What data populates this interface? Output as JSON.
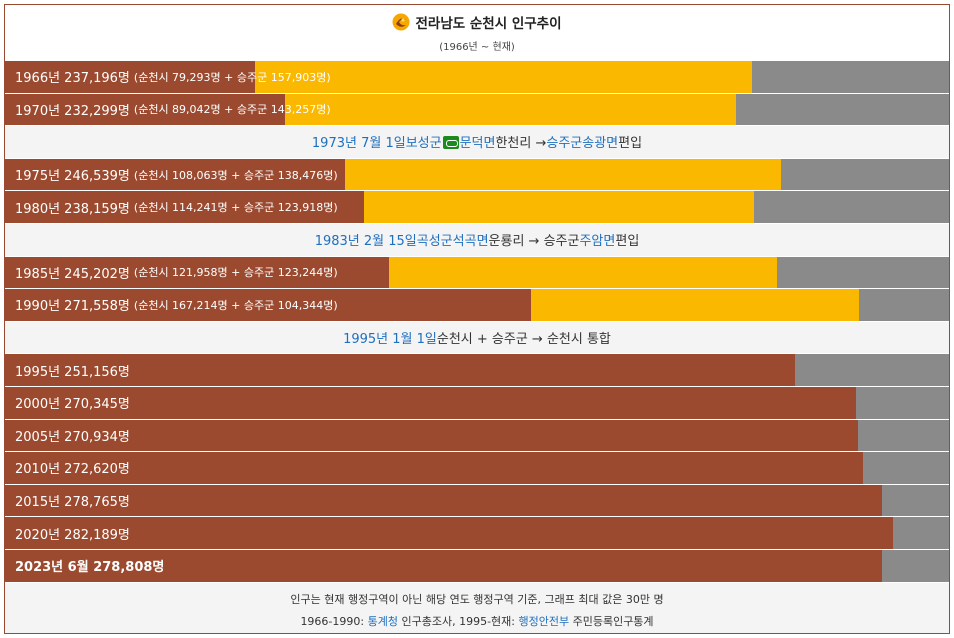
{
  "header": {
    "title": "전라남도 순천시 인구추이",
    "subtitle": "(1966년 ~ 현재)",
    "emblem_icon": "suncheon-emblem-icon"
  },
  "colors": {
    "suncheon": "#9b4a2f",
    "seungju": "#fbb800",
    "remainder": "#8a8a8a",
    "link": "#1f6fbf"
  },
  "chart_data": {
    "type": "bar",
    "stacked": true,
    "orientation": "horizontal",
    "xlim": [
      0,
      300000
    ],
    "series_order": [
      "순천시",
      "승주군"
    ],
    "rows": [
      {
        "kind": "bar",
        "label": "1966년 237,196명",
        "detail": "(순천시 79,293명 + 승주군 157,903명)",
        "values": [
          79293,
          157903
        ],
        "bold": false
      },
      {
        "kind": "bar",
        "label": "1970년 232,299명",
        "detail": "(순천시 89,042명 + 승주군 143,257명)",
        "values": [
          89042,
          143257
        ],
        "bold": false
      },
      {
        "kind": "note",
        "parts": [
          {
            "text": "1973년 7월 1일",
            "link": true
          },
          {
            "text": " ",
            "link": false
          },
          {
            "text": "보성군",
            "link": true
          },
          {
            "text": "",
            "link": false,
            "icon": "green-link-icon"
          },
          {
            "text": "문덕면",
            "link": true
          },
          {
            "text": " 한천리 → ",
            "link": false
          },
          {
            "text": "승주군",
            "link": true
          },
          {
            "text": " ",
            "link": false
          },
          {
            "text": "송광면",
            "link": true
          },
          {
            "text": " 편입",
            "link": false
          }
        ]
      },
      {
        "kind": "bar",
        "label": "1975년 246,539명",
        "detail": "(순천시 108,063명 + 승주군 138,476명)",
        "values": [
          108063,
          138476
        ],
        "bold": false
      },
      {
        "kind": "bar",
        "label": "1980년 238,159명",
        "detail": "(순천시 114,241명 + 승주군 123,918명)",
        "values": [
          114241,
          123918
        ],
        "bold": false
      },
      {
        "kind": "note",
        "parts": [
          {
            "text": "1983년 2월 15일",
            "link": true
          },
          {
            "text": " ",
            "link": false
          },
          {
            "text": "곡성군",
            "link": true
          },
          {
            "text": " ",
            "link": false
          },
          {
            "text": "석곡면",
            "link": true
          },
          {
            "text": " 운룡리 → 승주군 ",
            "link": false
          },
          {
            "text": "주암면",
            "link": true
          },
          {
            "text": " 편입",
            "link": false
          }
        ]
      },
      {
        "kind": "bar",
        "label": "1985년 245,202명",
        "detail": "(순천시 121,958명 + 승주군 123,244명)",
        "values": [
          121958,
          123244
        ],
        "bold": false
      },
      {
        "kind": "bar",
        "label": "1990년 271,558명",
        "detail": "(순천시 167,214명 + 승주군 104,344명)",
        "values": [
          167214,
          104344
        ],
        "bold": false
      },
      {
        "kind": "note",
        "parts": [
          {
            "text": "1995년 1월 1일",
            "link": true
          },
          {
            "text": " 순천시 + 승주군 → 순천시 통합",
            "link": false
          }
        ]
      },
      {
        "kind": "bar",
        "label": "1995년 251,156명",
        "detail": "",
        "values": [
          251156,
          0
        ],
        "bold": false
      },
      {
        "kind": "bar",
        "label": "2000년 270,345명",
        "detail": "",
        "values": [
          270345,
          0
        ],
        "bold": false
      },
      {
        "kind": "bar",
        "label": "2005년 270,934명",
        "detail": "",
        "values": [
          270934,
          0
        ],
        "bold": false
      },
      {
        "kind": "bar",
        "label": "2010년 272,620명",
        "detail": "",
        "values": [
          272620,
          0
        ],
        "bold": false
      },
      {
        "kind": "bar",
        "label": "2015년 278,765명",
        "detail": "",
        "values": [
          278765,
          0
        ],
        "bold": false
      },
      {
        "kind": "bar",
        "label": "2020년 282,189명",
        "detail": "",
        "values": [
          282189,
          0
        ],
        "bold": false
      },
      {
        "kind": "bar",
        "label": "2023년 6월 278,808명",
        "detail": "",
        "values": [
          278808,
          0
        ],
        "bold": true
      }
    ]
  },
  "footer": {
    "line1": "인구는 현재 행정구역이 아닌 해당 연도 행정구역 기준, 그래프 최대 값은 30만 명",
    "line2_parts": [
      {
        "text": "1966-1990: ",
        "link": false
      },
      {
        "text": "통계청",
        "link": true
      },
      {
        "text": " 인구총조사, 1995-현재: ",
        "link": false
      },
      {
        "text": "행정안전부",
        "link": true
      },
      {
        "text": " 주민등록인구통계",
        "link": false
      }
    ]
  }
}
